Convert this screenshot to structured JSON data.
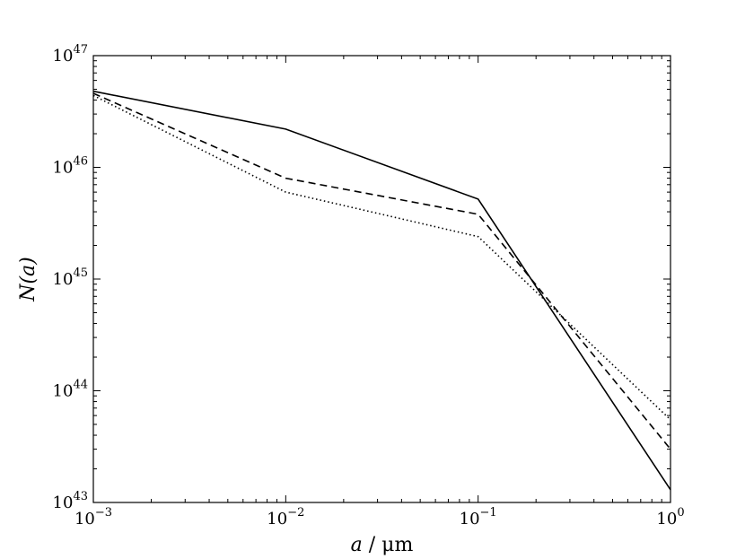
{
  "chart_data": {
    "type": "line",
    "xscale": "log",
    "yscale": "log",
    "xlim": [
      0.001,
      1
    ],
    "ylim": [
      1e+43,
      1e+47
    ],
    "xlabel_var": "a",
    "xlabel_unit": " / μm",
    "ylabel": "N(a)",
    "grid": false,
    "x_ticks": [
      {
        "base": "10",
        "exp": "−3",
        "value": 0.001
      },
      {
        "base": "10",
        "exp": "−2",
        "value": 0.01
      },
      {
        "base": "10",
        "exp": "−1",
        "value": 0.1
      },
      {
        "base": "10",
        "exp": "0",
        "value": 1
      }
    ],
    "y_ticks": [
      {
        "base": "10",
        "exp": "43",
        "value": 1e+43
      },
      {
        "base": "10",
        "exp": "44",
        "value": 1e+44
      },
      {
        "base": "10",
        "exp": "45",
        "value": 1e+45
      },
      {
        "base": "10",
        "exp": "46",
        "value": 1e+46
      },
      {
        "base": "10",
        "exp": "47",
        "value": 1e+47
      }
    ],
    "series": [
      {
        "style": "solid",
        "x": [
          0.001,
          0.01,
          0.1,
          1
        ],
        "y": [
          4.8e+46,
          2.2e+46,
          5.2e+45,
          1.3e+43
        ]
      },
      {
        "style": "dashed",
        "x": [
          0.001,
          0.01,
          0.1,
          1
        ],
        "y": [
          4.6e+46,
          8e+45,
          3.8e+45,
          3e+43
        ]
      },
      {
        "style": "dotted",
        "x": [
          0.001,
          0.01,
          0.1,
          1
        ],
        "y": [
          4.4e+46,
          6e+45,
          2.4e+45,
          5.5e+43
        ]
      }
    ]
  }
}
